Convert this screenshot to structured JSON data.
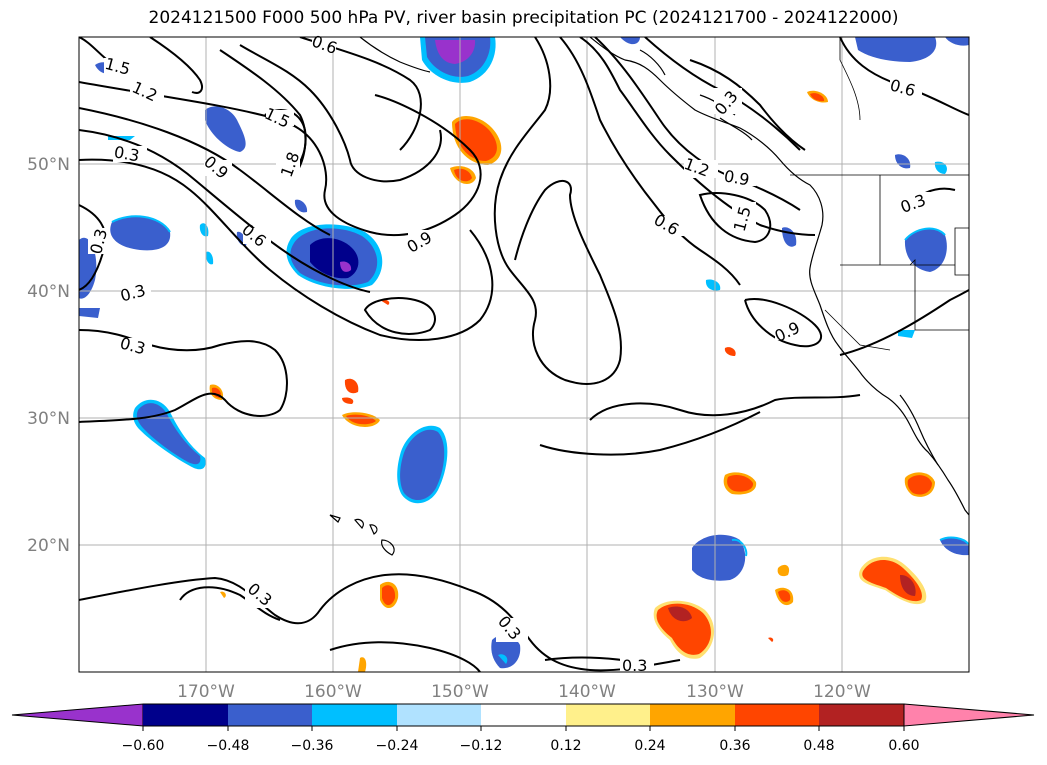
{
  "title": "2024121500 F000 500 hPa PV, river basin precipitation PC (2024121700 - 2024122000)",
  "lat_labels": [
    "50°N",
    "40°N",
    "30°N",
    "20°N"
  ],
  "lon_labels": [
    "170°W",
    "160°W",
    "150°W",
    "140°W",
    "130°W",
    "120°W"
  ],
  "colorbar": {
    "colors": [
      "#9932cc",
      "#00008b",
      "#3a5fcd",
      "#00bfff",
      "#b0e2ff",
      "#ffffff",
      "#fff08b",
      "#ffa500",
      "#ff4500",
      "#b22222",
      "#ff82ab"
    ],
    "tick_labels": [
      "−0.60",
      "−0.48",
      "−0.36",
      "−0.24",
      "−0.12",
      "0.12",
      "0.24",
      "0.36",
      "0.48",
      "0.60"
    ]
  },
  "contour_labels": [
    "1.5",
    "1.2",
    "0.3",
    "0.9",
    "0.6",
    "1.5",
    "1.8",
    "0.6",
    "0.9",
    "0.3",
    "0.3",
    "0.3",
    "0.3",
    "1.2",
    "0.9",
    "1.5",
    "0.6",
    "0.9",
    "0.6",
    "0.3",
    "0.3",
    "0.3",
    "0.3"
  ]
}
